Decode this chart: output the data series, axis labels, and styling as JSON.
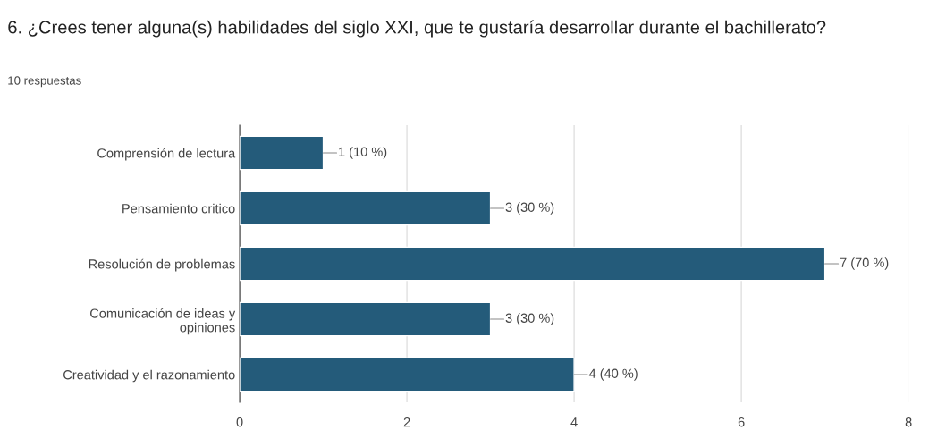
{
  "chart_data": {
    "type": "bar",
    "orientation": "horizontal",
    "title": "6. ¿Crees tener alguna(s) habilidades del siglo XXI, que te gustaría desarrollar durante el bachillerato?",
    "subtitle": "10 respuestas",
    "categories": [
      "Comprensión de lectura",
      "Pensamiento critico",
      "Resolución de problemas",
      "Comunicación de ideas y\nopiniones",
      "Creatividad y el razonamiento"
    ],
    "values": [
      1,
      3,
      7,
      3,
      4
    ],
    "value_labels": [
      "1 (10 %)",
      "3 (30 %)",
      "7 (70 %)",
      "3 (30 %)",
      "4 (40 %)"
    ],
    "color": "#245b7a",
    "xlim": [
      0,
      8
    ],
    "xticks": [
      0,
      2,
      4,
      6,
      8
    ],
    "grid": "x",
    "legend": false
  }
}
